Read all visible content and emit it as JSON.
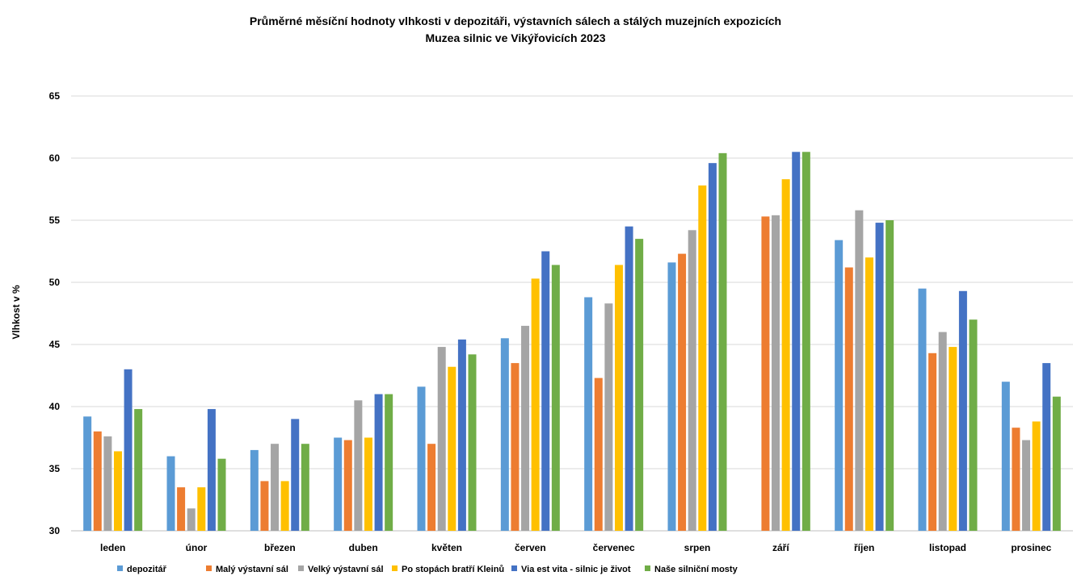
{
  "chart_data": {
    "type": "bar",
    "title": "Průměrné měsíční hodnoty vlhkosti v depozitáři, výstavních sálech a stálých muzejních expozicích",
    "subtitle": "Muzea silnic ve Vikýřovicích  2023",
    "ylabel": "Vlhkost v %",
    "xlabel": "",
    "ylim": [
      30,
      65
    ],
    "yticks": [
      30,
      35,
      40,
      45,
      50,
      55,
      60,
      65
    ],
    "grid": true,
    "legend_position": "bottom",
    "categories": [
      "leden",
      "únor",
      "březen",
      "duben",
      "květen",
      "červen",
      "červenec",
      "srpen",
      "září",
      "říjen",
      "listopad",
      "prosinec"
    ],
    "series": [
      {
        "name": "depozitář",
        "color": "#5B9BD5",
        "values": [
          39.2,
          36.0,
          36.5,
          37.5,
          41.6,
          45.5,
          48.8,
          51.6,
          null,
          53.4,
          49.5,
          42.0
        ]
      },
      {
        "name": "Malý výstavní sál",
        "color": "#ED7D31",
        "values": [
          38.0,
          33.5,
          34.0,
          37.3,
          37.0,
          43.5,
          42.3,
          52.3,
          55.3,
          51.2,
          44.3,
          38.3
        ]
      },
      {
        "name": "Velký výstavní sál",
        "color": "#A5A5A5",
        "values": [
          37.6,
          31.8,
          37.0,
          40.5,
          44.8,
          46.5,
          48.3,
          54.2,
          55.4,
          55.8,
          46.0,
          37.3
        ]
      },
      {
        "name": "Po stopách bratří Kleinů",
        "color": "#FFC000",
        "values": [
          36.4,
          33.5,
          34.0,
          37.5,
          43.2,
          50.3,
          51.4,
          57.8,
          58.3,
          52.0,
          44.8,
          38.8
        ]
      },
      {
        "name": "Via est vita - silnic je život",
        "color": "#4472C4",
        "values": [
          43.0,
          39.8,
          39.0,
          41.0,
          45.4,
          52.5,
          54.5,
          59.6,
          60.5,
          54.8,
          49.3,
          43.5
        ]
      },
      {
        "name": "Naše silniční mosty",
        "color": "#70AD47",
        "values": [
          39.8,
          35.8,
          37.0,
          41.0,
          44.2,
          51.4,
          53.5,
          60.4,
          60.5,
          55.0,
          47.0,
          40.8
        ]
      }
    ]
  },
  "colors": {
    "gridline": "#D9D9D9",
    "axis": "#BFBFBF"
  }
}
